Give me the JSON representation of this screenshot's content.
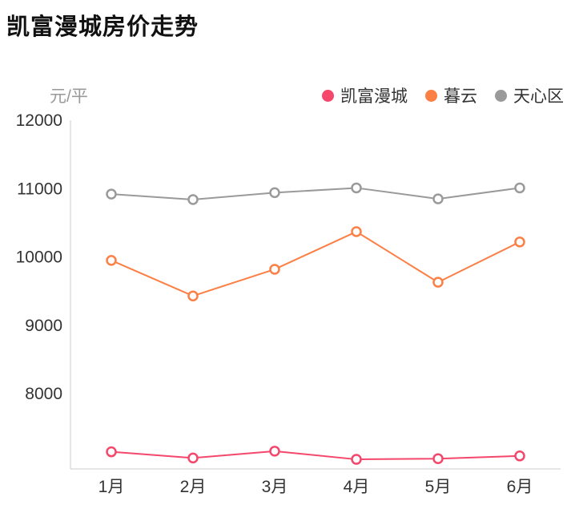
{
  "title": "凯富漫城房价走势",
  "unit_label": "元/平",
  "legend": [
    {
      "label": "凯富漫城",
      "color": "#f5476b"
    },
    {
      "label": "暮云",
      "color": "#fc7f45"
    },
    {
      "label": "天心区",
      "color": "#9a9a9a"
    }
  ],
  "chart_data": {
    "type": "line",
    "title": "凯富漫城房价走势",
    "ylabel": "元/平",
    "xlabel": "",
    "categories": [
      "1月",
      "2月",
      "3月",
      "4月",
      "5月",
      "6月"
    ],
    "series": [
      {
        "name": "凯富漫城",
        "color": "#f5476b",
        "values": [
          7150,
          7060,
          7160,
          7040,
          7050,
          7090
        ]
      },
      {
        "name": "暮云",
        "color": "#fc7f45",
        "values": [
          9950,
          9430,
          9820,
          10370,
          9630,
          10220
        ]
      },
      {
        "name": "天心区",
        "color": "#9a9a9a",
        "values": [
          10920,
          10840,
          10940,
          11010,
          10850,
          11010
        ]
      }
    ],
    "y_ticks": [
      8000,
      9000,
      10000,
      11000,
      12000
    ],
    "ylim": [
      6900,
      12000
    ],
    "grid": false,
    "legend_position": "top-right",
    "marker": "open-circle",
    "axis_color": "#cccccc",
    "tick_label_color": "#333333"
  }
}
